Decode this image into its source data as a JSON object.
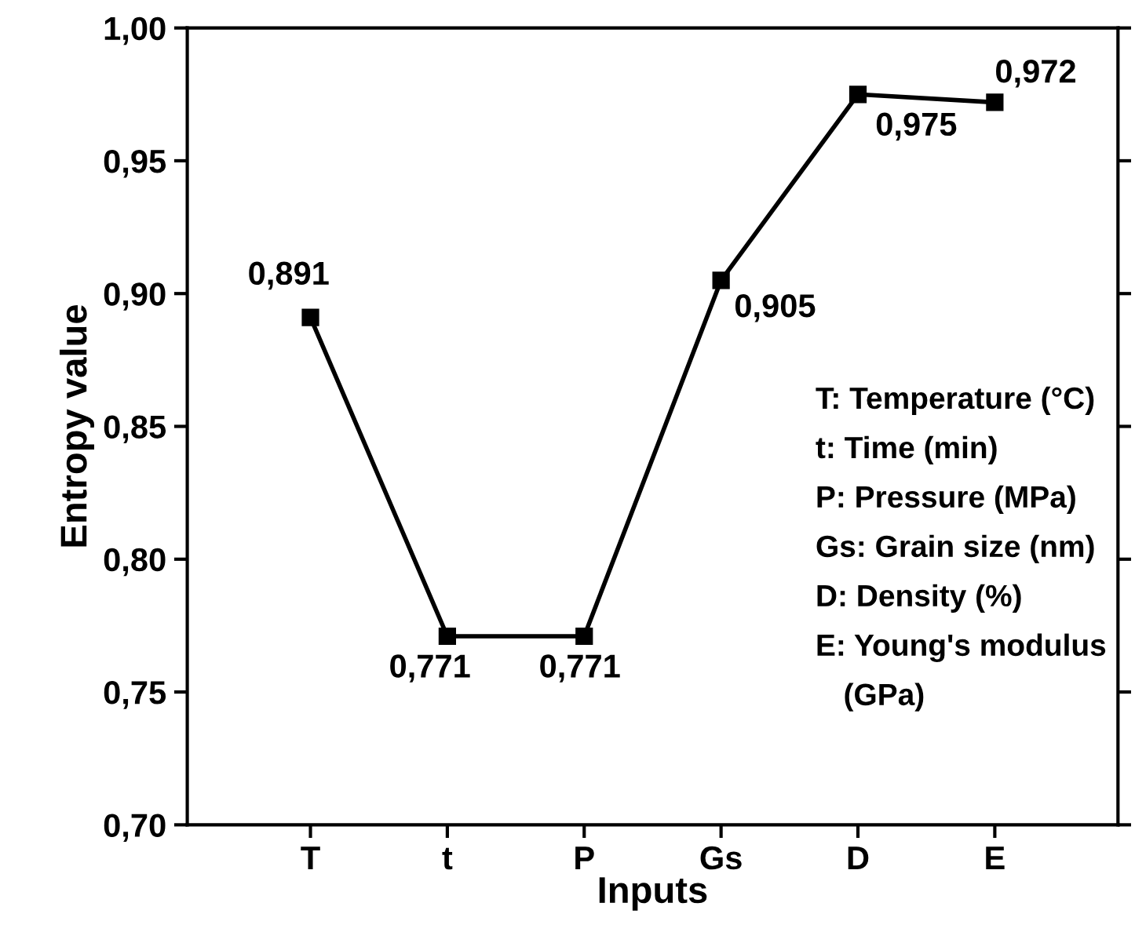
{
  "chart_data": {
    "type": "line",
    "xlabel": "Inputs",
    "ylabel": "Entropy value",
    "categories": [
      "T",
      "t",
      "P",
      "Gs",
      "D",
      "E"
    ],
    "series": [
      {
        "color": "#000000",
        "values": [
          0.891,
          0.771,
          0.771,
          0.905,
          0.975,
          0.972
        ]
      }
    ],
    "value_labels": [
      "0,891",
      "0,771",
      "0,771",
      "0,905",
      "0,975",
      "0,972"
    ],
    "ylim": [
      0.7,
      1.0
    ],
    "yticks": [
      {
        "value": 0.7,
        "label": "0,70"
      },
      {
        "value": 0.75,
        "label": "0,75"
      },
      {
        "value": 0.8,
        "label": "0,80"
      },
      {
        "value": 0.85,
        "label": "0,85"
      },
      {
        "value": 0.9,
        "label": "0,90"
      },
      {
        "value": 0.95,
        "label": "0,95"
      },
      {
        "value": 1.0,
        "label": "1,00"
      }
    ],
    "marker": "square",
    "line_style": "solid",
    "grid": false,
    "legend": false,
    "annotations": [
      "T: Temperature (°C)",
      "t: Time (min)",
      "P: Pressure (MPa)",
      "Gs: Grain size (nm)",
      "D: Density (%)",
      "E: Young's modulus",
      "(GPa)"
    ]
  }
}
